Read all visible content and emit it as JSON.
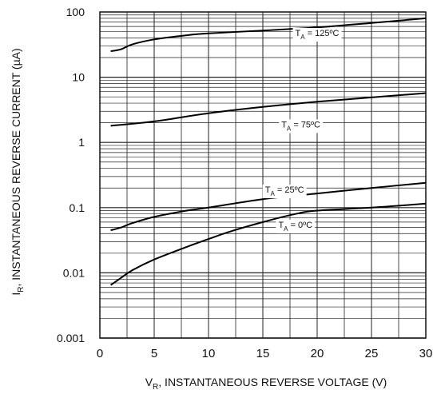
{
  "chart_data": {
    "type": "line",
    "y_scale": "log",
    "xlabel": {
      "sym": "V",
      "sub": "R",
      "rest": ", INSTANTANEOUS REVERSE VOLTAGE (V)"
    },
    "ylabel": {
      "sym": "I",
      "sub": "R",
      "rest": ", INSTANTANEOUS REVERSE CURRENT (µA)"
    },
    "xlim": [
      0,
      30
    ],
    "ylim": [
      0.001,
      100
    ],
    "x_ticks": [
      0,
      5,
      10,
      15,
      20,
      25,
      30
    ],
    "x_tick_labels": [
      "0",
      "5",
      "10",
      "15",
      "20",
      "25",
      "30"
    ],
    "y_ticks": [
      0.001,
      0.01,
      0.1,
      1,
      10,
      100
    ],
    "y_tick_labels": [
      "0.001",
      "0.01",
      "0.1",
      "1",
      "10",
      "100"
    ],
    "grid": true,
    "series": [
      {
        "name": "T_A = 125ºC",
        "label": {
          "sym": "T",
          "sub": "A",
          "rest": " = 125ºC"
        },
        "x": [
          1,
          2,
          3,
          5,
          8,
          10,
          15,
          20,
          25,
          30
        ],
        "y": [
          25,
          27,
          32,
          38,
          44,
          47,
          52,
          58,
          68,
          80
        ]
      },
      {
        "name": "T_A = 75ºC",
        "label": {
          "sym": "T",
          "sub": "A",
          "rest": " = 75ºC"
        },
        "x": [
          1,
          5,
          10,
          15,
          20,
          25,
          30
        ],
        "y": [
          1.8,
          2.1,
          2.8,
          3.5,
          4.2,
          4.9,
          5.7
        ]
      },
      {
        "name": "T_A = 25ºC",
        "label": {
          "sym": "T",
          "sub": "A",
          "rest": " = 25ºC"
        },
        "x": [
          1,
          2,
          3,
          5,
          8,
          10,
          15,
          20,
          25,
          30
        ],
        "y": [
          0.045,
          0.05,
          0.058,
          0.072,
          0.09,
          0.1,
          0.135,
          0.165,
          0.2,
          0.24
        ]
      },
      {
        "name": "T_A = 0ºC",
        "label": {
          "sym": "T",
          "sub": "A",
          "rest": " = 0ºC"
        },
        "x": [
          1,
          2,
          3,
          5,
          8,
          10,
          12,
          15,
          18,
          20,
          25,
          30
        ],
        "y": [
          0.0065,
          0.0085,
          0.011,
          0.016,
          0.025,
          0.033,
          0.043,
          0.06,
          0.08,
          0.09,
          0.1,
          0.115
        ]
      }
    ]
  }
}
